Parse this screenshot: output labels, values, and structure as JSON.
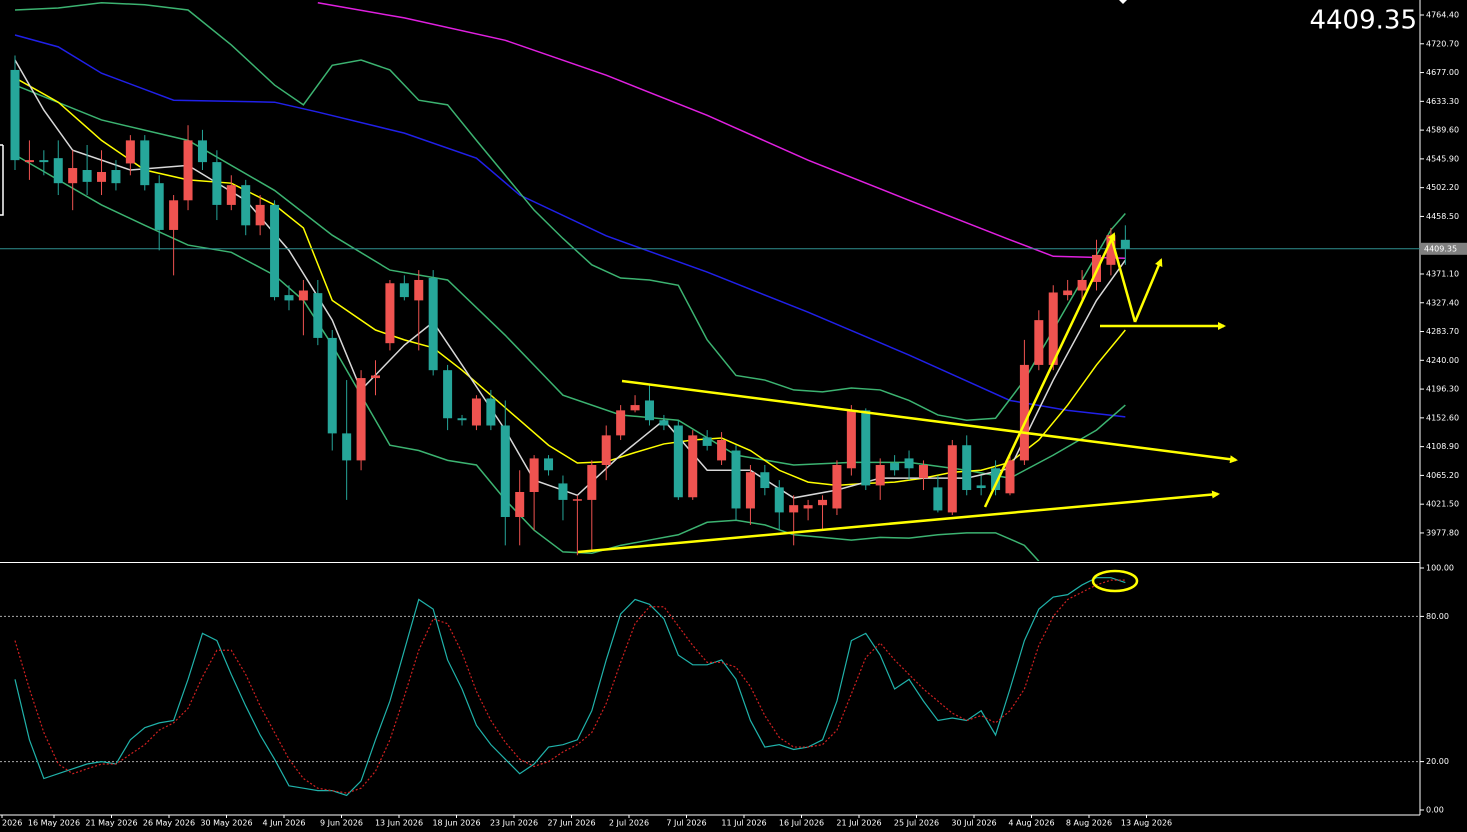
{
  "chart_data": [
    {
      "type": "candlestick",
      "last_price": 4409.35,
      "up_color": "#ef5350",
      "down_color": "#26a69a",
      "last_price_color": "#ff1a1a",
      "ylim": [
        3935.2,
        4787.2
      ],
      "yticks": [
        {
          "value": 4764.4,
          "label": "4764.40"
        },
        {
          "value": 4720.7,
          "label": "4720.70"
        },
        {
          "value": 4677,
          "label": "4677.00"
        },
        {
          "value": 4633.3,
          "label": "4633.30"
        },
        {
          "value": 4589.6,
          "label": "4589.60"
        },
        {
          "value": 4545.9,
          "label": "4545.90"
        },
        {
          "value": 4502.2,
          "label": "4502.20"
        },
        {
          "value": 4458.5,
          "label": "4458.50"
        },
        {
          "value": 4371.1,
          "label": "4371.10"
        },
        {
          "value": 4327.4,
          "label": "4327.40"
        },
        {
          "value": 4283.7,
          "label": "4283.70"
        },
        {
          "value": 4240,
          "label": "4240.00"
        },
        {
          "value": 4196.3,
          "label": "4196.30"
        },
        {
          "value": 4152.6,
          "label": "4152.60"
        },
        {
          "value": 4108.9,
          "label": "4108.90"
        },
        {
          "value": 4065.2,
          "label": "4065.20"
        },
        {
          "value": 4021.5,
          "label": "4021.50"
        },
        {
          "value": 3977.8,
          "label": "3977.80"
        }
      ],
      "open": [
        4681,
        4541,
        4544,
        4547,
        4509,
        4529,
        4511,
        4529,
        4539,
        4574,
        4509,
        4438,
        4483,
        4574,
        4541,
        4476,
        4506,
        4445,
        4476,
        4339,
        4331,
        4342,
        4274,
        4129,
        4088,
        4213,
        4266,
        4357,
        4331,
        4365,
        4225,
        4152,
        4141,
        4182,
        4141,
        4002,
        4040,
        4091,
        4053,
        4028,
        4028,
        4081,
        4126,
        4164,
        4179,
        4149,
        4141,
        4032,
        4123,
        4088,
        4103,
        4015,
        4070,
        4047,
        4009,
        4015,
        4020,
        4015,
        4076,
        4164,
        4050,
        4084,
        4091,
        4061,
        4047,
        4009,
        4111,
        4050,
        4076,
        4038,
        4088,
        4233,
        4233,
        4339,
        4346,
        4359,
        4385,
        4423
      ],
      "high": [
        4703,
        4574,
        4559,
        4574,
        4559,
        4567,
        4559,
        4544,
        4582,
        4582,
        4521,
        4491,
        4597,
        4590,
        4559,
        4521,
        4514,
        4491,
        4483,
        4354,
        4362,
        4362,
        4286,
        4210,
        4225,
        4240,
        4362,
        4369,
        4377,
        4377,
        4233,
        4157,
        4187,
        4195,
        4179,
        4073,
        4096,
        4096,
        4065,
        4035,
        4088,
        4141,
        4172,
        4187,
        4202,
        4157,
        4149,
        4134,
        4134,
        4131,
        4111,
        4081,
        4081,
        4058,
        4035,
        4028,
        4035,
        4088,
        4172,
        4167,
        4091,
        4096,
        4103,
        4088,
        4065,
        4119,
        4126,
        4065,
        4088,
        4096,
        4271,
        4316,
        4354,
        4362,
        4377,
        4423,
        4441,
        4445
      ],
      "low": [
        4529,
        4514,
        4521,
        4491,
        4468,
        4491,
        4491,
        4498,
        4521,
        4498,
        4407,
        4369,
        4468,
        4529,
        4453,
        4468,
        4430,
        4430,
        4331,
        4316,
        4278,
        4263,
        4103,
        4028,
        4073,
        4187,
        4255,
        4331,
        4255,
        4217,
        4134,
        4141,
        4134,
        4134,
        3959,
        3959,
        3982,
        4065,
        3997,
        3944,
        3952,
        4058,
        4119,
        4161,
        4141,
        4134,
        4028,
        4028,
        4103,
        4081,
        3997,
        3990,
        4035,
        3982,
        3959,
        3997,
        3982,
        4005,
        4065,
        4043,
        4028,
        4065,
        4058,
        4043,
        4009,
        4005,
        4035,
        4035,
        4035,
        4035,
        4081,
        4225,
        4225,
        4331,
        4331,
        4346,
        4369,
        4385
      ],
      "close": [
        4544,
        4544,
        4541,
        4509,
        4532,
        4511,
        4526,
        4509,
        4574,
        4506,
        4438,
        4483,
        4574,
        4541,
        4476,
        4506,
        4445,
        4476,
        4336,
        4331,
        4346,
        4274,
        4129,
        4088,
        4213,
        4217,
        4357,
        4336,
        4362,
        4225,
        4152,
        4149,
        4182,
        4141,
        4002,
        4040,
        4091,
        4073,
        4028,
        4029,
        4081,
        4126,
        4164,
        4172,
        4149,
        4141,
        4032,
        4126,
        4110,
        4119,
        4015,
        4070,
        4046,
        4009,
        4020,
        4020,
        4028,
        4081,
        4164,
        4050,
        4081,
        4073,
        4076,
        4081,
        4012,
        4111,
        4043,
        4046,
        4043,
        4088,
        4233,
        4301,
        4343,
        4346,
        4362,
        4400,
        4430,
        4409.35
      ],
      "lines": [
        {
          "color": "#e020e0",
          "x": [
            21,
            27,
            34,
            41,
            48,
            55,
            62,
            69,
            72,
            77
          ],
          "values": [
            4783,
            4760,
            4726,
            4673,
            4612,
            4544,
            4483,
            4423,
            4398,
            4395
          ]
        },
        {
          "color": "#2020e8",
          "x": [
            0,
            3,
            6,
            11,
            18,
            21,
            27,
            32,
            35,
            41,
            48,
            55,
            62,
            69,
            73,
            77
          ],
          "values": [
            4734,
            4716,
            4676,
            4635,
            4632,
            4617,
            4585,
            4547,
            4491,
            4429,
            4374,
            4313,
            4248,
            4179,
            4164,
            4154
          ]
        },
        {
          "color": "#3cb371",
          "x": [
            0,
            3,
            6,
            9,
            12,
            15,
            18,
            20,
            22,
            24,
            26,
            28,
            30,
            32,
            34,
            36,
            38,
            40,
            42,
            44,
            46,
            48,
            50,
            52,
            54,
            56,
            58,
            60,
            62,
            64,
            66,
            68,
            70,
            72,
            74,
            76,
            77
          ],
          "values": [
            4772,
            4775,
            4783,
            4780,
            4772,
            4719,
            4658,
            4628,
            4688,
            4696,
            4681,
            4635,
            4628,
            4574,
            4521,
            4468,
            4425,
            4385,
            4365,
            4362,
            4354,
            4271,
            4217,
            4210,
            4195,
            4192,
            4198,
            4195,
            4179,
            4157,
            4149,
            4152,
            4210,
            4286,
            4362,
            4438,
            4463
          ]
        },
        {
          "color": "#3cb371",
          "x": [
            0,
            3,
            6,
            9,
            12,
            15,
            18,
            20,
            22,
            24,
            26,
            28,
            30,
            32,
            34,
            36,
            38,
            40,
            42,
            44,
            46,
            48,
            50,
            52,
            54,
            56,
            58,
            60,
            62,
            64,
            66,
            68,
            70,
            71
          ],
          "values": [
            4552,
            4514,
            4476,
            4445,
            4415,
            4404,
            4369,
            4331,
            4263,
            4187,
            4111,
            4103,
            4088,
            4081,
            4028,
            3982,
            3949,
            3947,
            3959,
            3967,
            3975,
            3994,
            3997,
            3990,
            3975,
            3971,
            3967,
            3971,
            3970,
            3975,
            3978,
            3978,
            3959,
            3935
          ]
        },
        {
          "color": "#3cb371",
          "x": [
            0,
            6,
            12,
            18,
            22,
            26,
            30,
            34,
            38,
            42,
            46,
            50,
            54,
            58,
            62,
            66,
            69,
            72,
            75,
            77
          ],
          "values": [
            4658,
            4605,
            4574,
            4498,
            4430,
            4377,
            4362,
            4278,
            4187,
            4157,
            4149,
            4096,
            4081,
            4085,
            4085,
            4073,
            4061,
            4096,
            4134,
            4172
          ]
        },
        {
          "color": "#ffff00",
          "x": [
            0,
            3,
            6,
            9,
            12,
            15,
            18,
            20,
            22,
            25,
            27,
            29,
            31,
            33,
            35,
            37,
            39,
            41,
            43,
            45,
            47,
            49,
            51,
            53,
            55,
            57,
            59,
            61,
            63,
            65,
            67,
            69,
            71,
            73,
            75,
            77
          ],
          "values": [
            4669,
            4632,
            4574,
            4529,
            4514,
            4509,
            4476,
            4441,
            4331,
            4286,
            4271,
            4259,
            4225,
            4187,
            4149,
            4111,
            4084,
            4086,
            4100,
            4113,
            4119,
            4122,
            4103,
            4073,
            4055,
            4050,
            4053,
            4055,
            4061,
            4070,
            4073,
            4085,
            4119,
            4172,
            4233,
            4286
          ]
        },
        {
          "color": "#d8d8d8",
          "x": [
            0,
            2,
            4,
            8,
            12,
            16,
            19,
            22,
            24,
            27,
            29,
            31,
            34,
            36,
            39,
            42,
            45,
            48,
            51,
            54,
            57,
            60,
            63,
            66,
            69,
            72,
            75,
            77
          ],
          "values": [
            4696,
            4620,
            4559,
            4529,
            4536,
            4483,
            4407,
            4301,
            4195,
            4263,
            4298,
            4233,
            4134,
            4058,
            4035,
            4096,
            4149,
            4073,
            4073,
            4031,
            4043,
            4061,
            4061,
            4061,
            4076,
            4210,
            4331,
            4392
          ]
        }
      ]
    },
    {
      "type": "line",
      "ylim": [
        0,
        100
      ],
      "yticks": [
        {
          "value": 100,
          "label": "100.00"
        },
        {
          "value": 80,
          "label": "80.00"
        },
        {
          "value": 20,
          "label": "20.00"
        },
        {
          "value": 0,
          "label": "0.00"
        }
      ],
      "series": [
        {
          "color": "#20b2aa",
          "values": [
            54,
            29,
            13,
            15,
            17,
            19,
            20,
            19,
            29,
            34,
            36,
            37,
            54,
            73,
            70,
            56,
            43,
            31,
            21,
            10,
            9,
            8,
            8,
            6,
            12,
            29,
            45,
            66,
            87,
            83,
            62,
            50,
            35,
            27,
            21,
            15,
            19,
            26,
            27,
            29,
            41,
            62,
            81,
            87,
            85,
            79,
            64,
            60,
            60,
            62,
            54,
            37,
            26,
            27,
            25,
            26,
            29,
            45,
            70,
            73,
            64,
            50,
            54,
            45,
            37,
            38,
            37,
            41,
            31,
            50,
            70,
            83,
            88,
            89,
            93,
            96,
            96,
            94
          ]
        },
        {
          "color": "#d02020",
          "dashed": true,
          "values": [
            70,
            50,
            32,
            19,
            15,
            17,
            19,
            19,
            23,
            27,
            33,
            36,
            42,
            55,
            66,
            66,
            56,
            43,
            32,
            21,
            13,
            9,
            8,
            7,
            9,
            16,
            29,
            47,
            66,
            79,
            77,
            65,
            49,
            37,
            28,
            21,
            18,
            20,
            24,
            27,
            32,
            44,
            61,
            77,
            84,
            84,
            76,
            68,
            61,
            61,
            59,
            51,
            39,
            30,
            26,
            26,
            27,
            33,
            48,
            63,
            69,
            62,
            56,
            50,
            45,
            40,
            37,
            39,
            36,
            41,
            50,
            68,
            80,
            87,
            90,
            93,
            95,
            95
          ]
        }
      ],
      "x_labels": [
        "2026",
        "16 May 2026",
        "21 May 2026",
        "26 May 2026",
        "30 May 2026",
        "4 Jun 2026",
        "9 Jun 2026",
        "13 Jun 2026",
        "18 Jun 2026",
        "23 Jun 2026",
        "27 Jun 2026",
        "2 Jul 2026",
        "7 Jul 2026",
        "11 Jul 2026",
        "16 Jul 2026",
        "21 Jul 2026",
        "25 Jul 2026",
        "30 Jul 2026",
        "4 Aug 2026",
        "8 Aug 2026",
        "13 Aug 2026"
      ]
    }
  ]
}
